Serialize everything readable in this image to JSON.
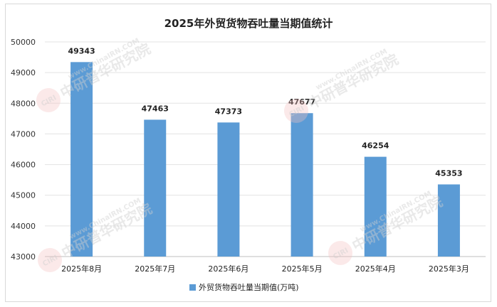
{
  "chart_data": {
    "type": "bar",
    "title": "2025年外贸货物吞吐量当期值统计",
    "categories": [
      "2025年8月",
      "2025年7月",
      "2025年6月",
      "2025年5月",
      "2025年4月",
      "2025年3月"
    ],
    "series": [
      {
        "name": "外贸货物吞吐量当期值(万吨)",
        "values": [
          49343,
          47463,
          47373,
          47677,
          46254,
          45353
        ],
        "color": "#5b9bd5"
      }
    ],
    "y_ticks": [
      "43000",
      "44000",
      "45000",
      "46000",
      "47000",
      "48000",
      "49000",
      "50000"
    ],
    "ylim": [
      43000,
      50000
    ],
    "grid": true,
    "legend_position": "bottom",
    "data_labels": [
      "49343",
      "47463",
      "47373",
      "47677",
      "46254",
      "45353"
    ]
  },
  "watermark": {
    "logo_text": "CIRI",
    "brand_text": "中研普华研究院",
    "url_text": "www.ChinaIRN.COM"
  }
}
